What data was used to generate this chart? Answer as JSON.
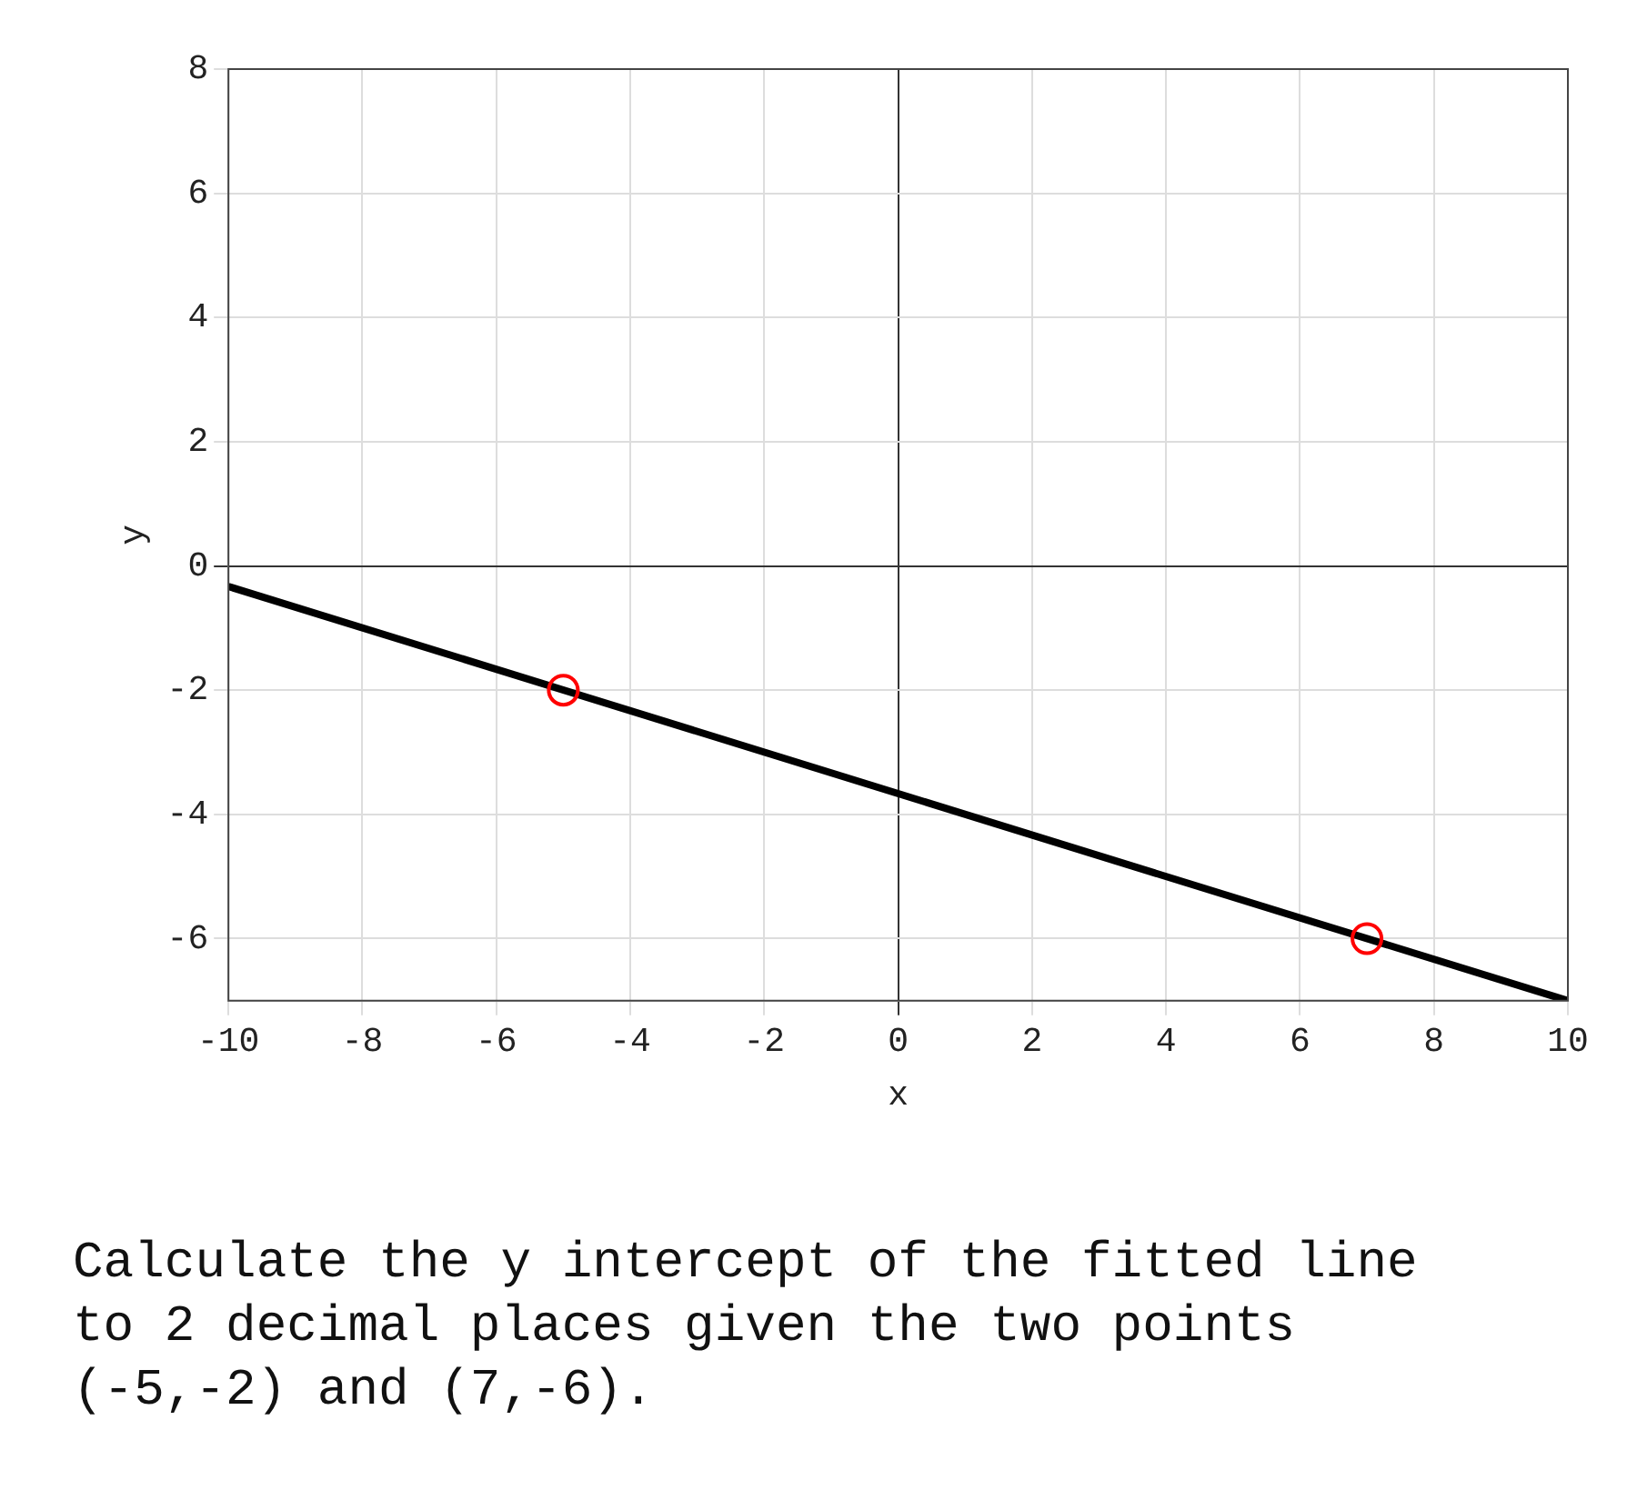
{
  "chart_data": {
    "type": "line",
    "xlabel": "x",
    "ylabel": "y",
    "xlim": [
      -10,
      10
    ],
    "xticks": [
      -10,
      -8,
      -6,
      -4,
      -2,
      0,
      2,
      4,
      6,
      8,
      10
    ],
    "ylim": [
      -7,
      8
    ],
    "yticks": [
      -6,
      -4,
      -2,
      0,
      2,
      4,
      6,
      8
    ],
    "grid": true,
    "legend": false,
    "series": [
      {
        "x": [
          -10,
          10
        ],
        "values": [
          -0.33,
          -7
        ],
        "color": "#000000",
        "marker": "none",
        "line_style": "solid"
      },
      {
        "type": "scatter",
        "x": [
          -5,
          7
        ],
        "values": [
          -2,
          -6
        ],
        "color": "#ff0000",
        "marker": "circle"
      }
    ],
    "annotations": [
      "Calculate the y intercept of the fitted line to 2 decimal places given the two points (-5,-2) and (7,-6)."
    ]
  }
}
